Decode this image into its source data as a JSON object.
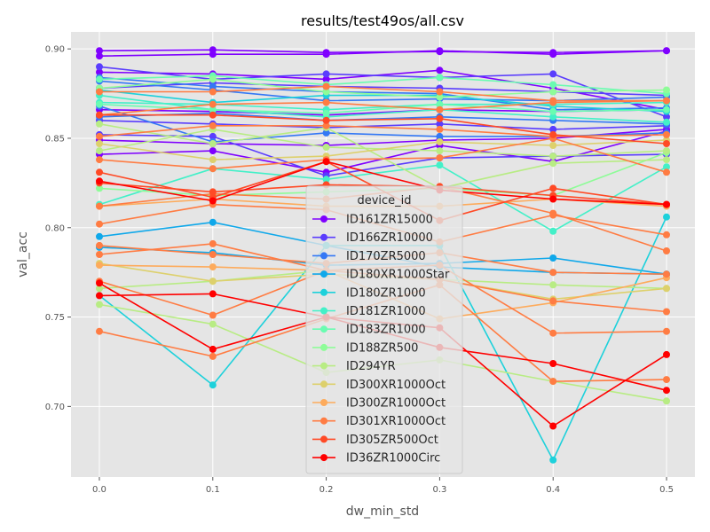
{
  "chart_data": {
    "type": "line",
    "title": "results/test49os/all.csv",
    "xlabel": "dw_min_std",
    "ylabel": "val_acc",
    "x": [
      0.0,
      0.1,
      0.2,
      0.3,
      0.4,
      0.5
    ],
    "x_ticks": [
      "0.0",
      "0.1",
      "0.2",
      "0.3",
      "0.4",
      "0.5"
    ],
    "y_ticks": [
      "0.70",
      "0.75",
      "0.80",
      "0.85",
      "0.90"
    ],
    "xlim": [
      -0.025,
      0.525
    ],
    "ylim": [
      0.6605,
      0.9095
    ],
    "grid": true,
    "legend": {
      "title": "device_id",
      "placement": "center",
      "entries": [
        {
          "label": "ID161ZR15000",
          "color": "#7f00ff"
        },
        {
          "label": "ID166ZR10000",
          "color": "#5a3dfd"
        },
        {
          "label": "ID170ZR5000",
          "color": "#3478f5"
        },
        {
          "label": "ID180XR1000Star",
          "color": "#0fa8ea"
        },
        {
          "label": "ID180ZR1000",
          "color": "#1dd1db"
        },
        {
          "label": "ID181ZR1000",
          "color": "#43f0c8"
        },
        {
          "label": "ID183ZR1000",
          "color": "#6afcb1"
        },
        {
          "label": "ID188ZR500",
          "color": "#8efc98"
        },
        {
          "label": "ID294YR",
          "color": "#b8ec84"
        },
        {
          "label": "ID300XR1000Oct",
          "color": "#ddd06c"
        },
        {
          "label": "ID300ZR1000Oct",
          "color": "#fdab5c"
        },
        {
          "label": "ID301XR1000Oct",
          "color": "#ff7c43"
        },
        {
          "label": "ID305ZR500Oct",
          "color": "#ff4a26"
        },
        {
          "label": "ID36ZR1000Circ",
          "color": "#ff0000"
        }
      ]
    },
    "series": [
      {
        "color": "#7f00ff",
        "values": [
          0.899,
          0.8995,
          0.898,
          0.8985,
          0.898,
          0.899
        ]
      },
      {
        "color": "#7f00ff",
        "values": [
          0.896,
          0.897,
          0.897,
          0.899,
          0.897,
          0.899
        ]
      },
      {
        "color": "#7f00ff",
        "values": [
          0.887,
          0.886,
          0.883,
          0.888,
          0.878,
          0.866
        ]
      },
      {
        "color": "#7f00ff",
        "values": [
          0.849,
          0.847,
          0.846,
          0.849,
          0.85,
          0.855
        ]
      },
      {
        "color": "#7f00ff",
        "values": [
          0.841,
          0.843,
          0.831,
          0.846,
          0.837,
          0.854
        ]
      },
      {
        "color": "#7f00ff",
        "values": [
          0.866,
          0.865,
          0.863,
          0.866,
          0.865,
          0.866
        ]
      },
      {
        "color": "#5a3dfd",
        "values": [
          0.89,
          0.883,
          0.886,
          0.884,
          0.886,
          0.862
        ]
      },
      {
        "color": "#5a3dfd",
        "values": [
          0.878,
          0.881,
          0.879,
          0.878,
          0.876,
          0.874
        ]
      },
      {
        "color": "#5a3dfd",
        "values": [
          0.852,
          0.851,
          0.829,
          0.839,
          0.84,
          0.841
        ]
      },
      {
        "color": "#5a3dfd",
        "values": [
          0.86,
          0.858,
          0.856,
          0.858,
          0.855,
          0.857
        ]
      },
      {
        "color": "#3478f5",
        "values": [
          0.884,
          0.879,
          0.876,
          0.875,
          0.866,
          0.867
        ]
      },
      {
        "color": "#3478f5",
        "values": [
          0.868,
          0.848,
          0.853,
          0.851,
          0.851,
          0.853
        ]
      },
      {
        "color": "#3478f5",
        "values": [
          0.862,
          0.864,
          0.86,
          0.862,
          0.86,
          0.858
        ]
      },
      {
        "color": "#3478f5",
        "values": [
          0.882,
          0.877,
          0.871,
          0.872,
          0.871,
          0.873
        ]
      },
      {
        "color": "#0fa8ea",
        "values": [
          0.795,
          0.803,
          0.79,
          0.778,
          0.775,
          0.774
        ]
      },
      {
        "color": "#0fa8ea",
        "values": [
          0.789,
          0.786,
          0.779,
          0.78,
          0.783,
          0.774
        ]
      },
      {
        "color": "#1dd1db",
        "values": [
          0.762,
          0.712,
          0.79,
          0.79,
          0.67,
          0.806
        ]
      },
      {
        "color": "#1dd1db",
        "values": [
          0.877,
          0.87,
          0.874,
          0.874,
          0.868,
          0.865
        ]
      },
      {
        "color": "#43f0c8",
        "values": [
          0.813,
          0.833,
          0.827,
          0.835,
          0.798,
          0.834
        ]
      },
      {
        "color": "#43f0c8",
        "values": [
          0.874,
          0.866,
          0.862,
          0.866,
          0.862,
          0.859
        ]
      },
      {
        "color": "#43f0c8",
        "values": [
          0.87,
          0.869,
          0.866,
          0.869,
          0.869,
          0.87
        ]
      },
      {
        "color": "#6afcb1",
        "values": [
          0.883,
          0.885,
          0.88,
          0.884,
          0.88,
          0.875
        ]
      },
      {
        "color": "#6afcb1",
        "values": [
          0.869,
          0.866,
          0.864,
          0.869,
          0.865,
          0.866
        ]
      },
      {
        "color": "#8efc98",
        "values": [
          0.878,
          0.883,
          0.876,
          0.873,
          0.876,
          0.877
        ]
      },
      {
        "color": "#8efc98",
        "values": [
          0.822,
          0.818,
          0.82,
          0.822,
          0.818,
          0.842
        ]
      },
      {
        "color": "#b8ec84",
        "values": [
          0.766,
          0.77,
          0.776,
          0.771,
          0.768,
          0.766
        ]
      },
      {
        "color": "#b8ec84",
        "values": [
          0.757,
          0.746,
          0.719,
          0.726,
          0.714,
          0.703
        ]
      },
      {
        "color": "#b8ec84",
        "values": [
          0.843,
          0.855,
          0.845,
          0.843,
          0.84,
          0.843
        ]
      },
      {
        "color": "#b8ec84",
        "values": [
          0.858,
          0.847,
          0.856,
          0.822,
          0.836,
          0.838
        ]
      },
      {
        "color": "#ddd06c",
        "values": [
          0.78,
          0.77,
          0.774,
          0.771,
          0.76,
          0.766
        ]
      },
      {
        "color": "#ddd06c",
        "values": [
          0.847,
          0.838,
          0.84,
          0.848,
          0.846,
          0.849
        ]
      },
      {
        "color": "#fdab5c",
        "values": [
          0.779,
          0.778,
          0.776,
          0.749,
          0.758,
          0.772
        ]
      },
      {
        "color": "#fdab5c",
        "values": [
          0.812,
          0.816,
          0.812,
          0.812,
          0.816,
          0.812
        ]
      },
      {
        "color": "#ff7c43",
        "values": [
          0.742,
          0.728,
          0.749,
          0.768,
          0.714,
          0.715
        ]
      },
      {
        "color": "#ff7c43",
        "values": [
          0.77,
          0.751,
          0.776,
          0.779,
          0.741,
          0.742
        ]
      },
      {
        "color": "#ff7c43",
        "values": [
          0.785,
          0.791,
          0.776,
          0.771,
          0.759,
          0.753
        ]
      },
      {
        "color": "#ff7c43",
        "values": [
          0.79,
          0.785,
          0.78,
          0.786,
          0.775,
          0.774
        ]
      },
      {
        "color": "#ff7c43",
        "values": [
          0.802,
          0.813,
          0.81,
          0.792,
          0.807,
          0.796
        ]
      },
      {
        "color": "#ff7c43",
        "values": [
          0.812,
          0.819,
          0.816,
          0.823,
          0.808,
          0.787
        ]
      },
      {
        "color": "#ff7c43",
        "values": [
          0.838,
          0.833,
          0.838,
          0.839,
          0.85,
          0.831
        ]
      },
      {
        "color": "#ff7c43",
        "values": [
          0.851,
          0.857,
          0.857,
          0.855,
          0.851,
          0.852
        ]
      },
      {
        "color": "#ff7c43",
        "values": [
          0.863,
          0.869,
          0.87,
          0.866,
          0.87,
          0.871
        ]
      },
      {
        "color": "#ff7c43",
        "values": [
          0.876,
          0.876,
          0.879,
          0.876,
          0.871,
          0.871
        ]
      },
      {
        "color": "#ff4a26",
        "values": [
          0.831,
          0.817,
          0.837,
          0.804,
          0.822,
          0.813
        ]
      },
      {
        "color": "#ff4a26",
        "values": [
          0.825,
          0.82,
          0.824,
          0.823,
          0.818,
          0.813
        ]
      },
      {
        "color": "#ff4a26",
        "values": [
          0.863,
          0.863,
          0.86,
          0.861,
          0.852,
          0.847
        ]
      },
      {
        "color": "#ff0000",
        "values": [
          0.769,
          0.732,
          0.75,
          0.744,
          0.689,
          0.729
        ]
      },
      {
        "color": "#ff0000",
        "values": [
          0.762,
          0.763,
          0.75,
          0.733,
          0.724,
          0.709
        ]
      },
      {
        "color": "#ff0000",
        "values": [
          0.826,
          0.815,
          0.837,
          0.821,
          0.816,
          0.813
        ]
      }
    ]
  }
}
